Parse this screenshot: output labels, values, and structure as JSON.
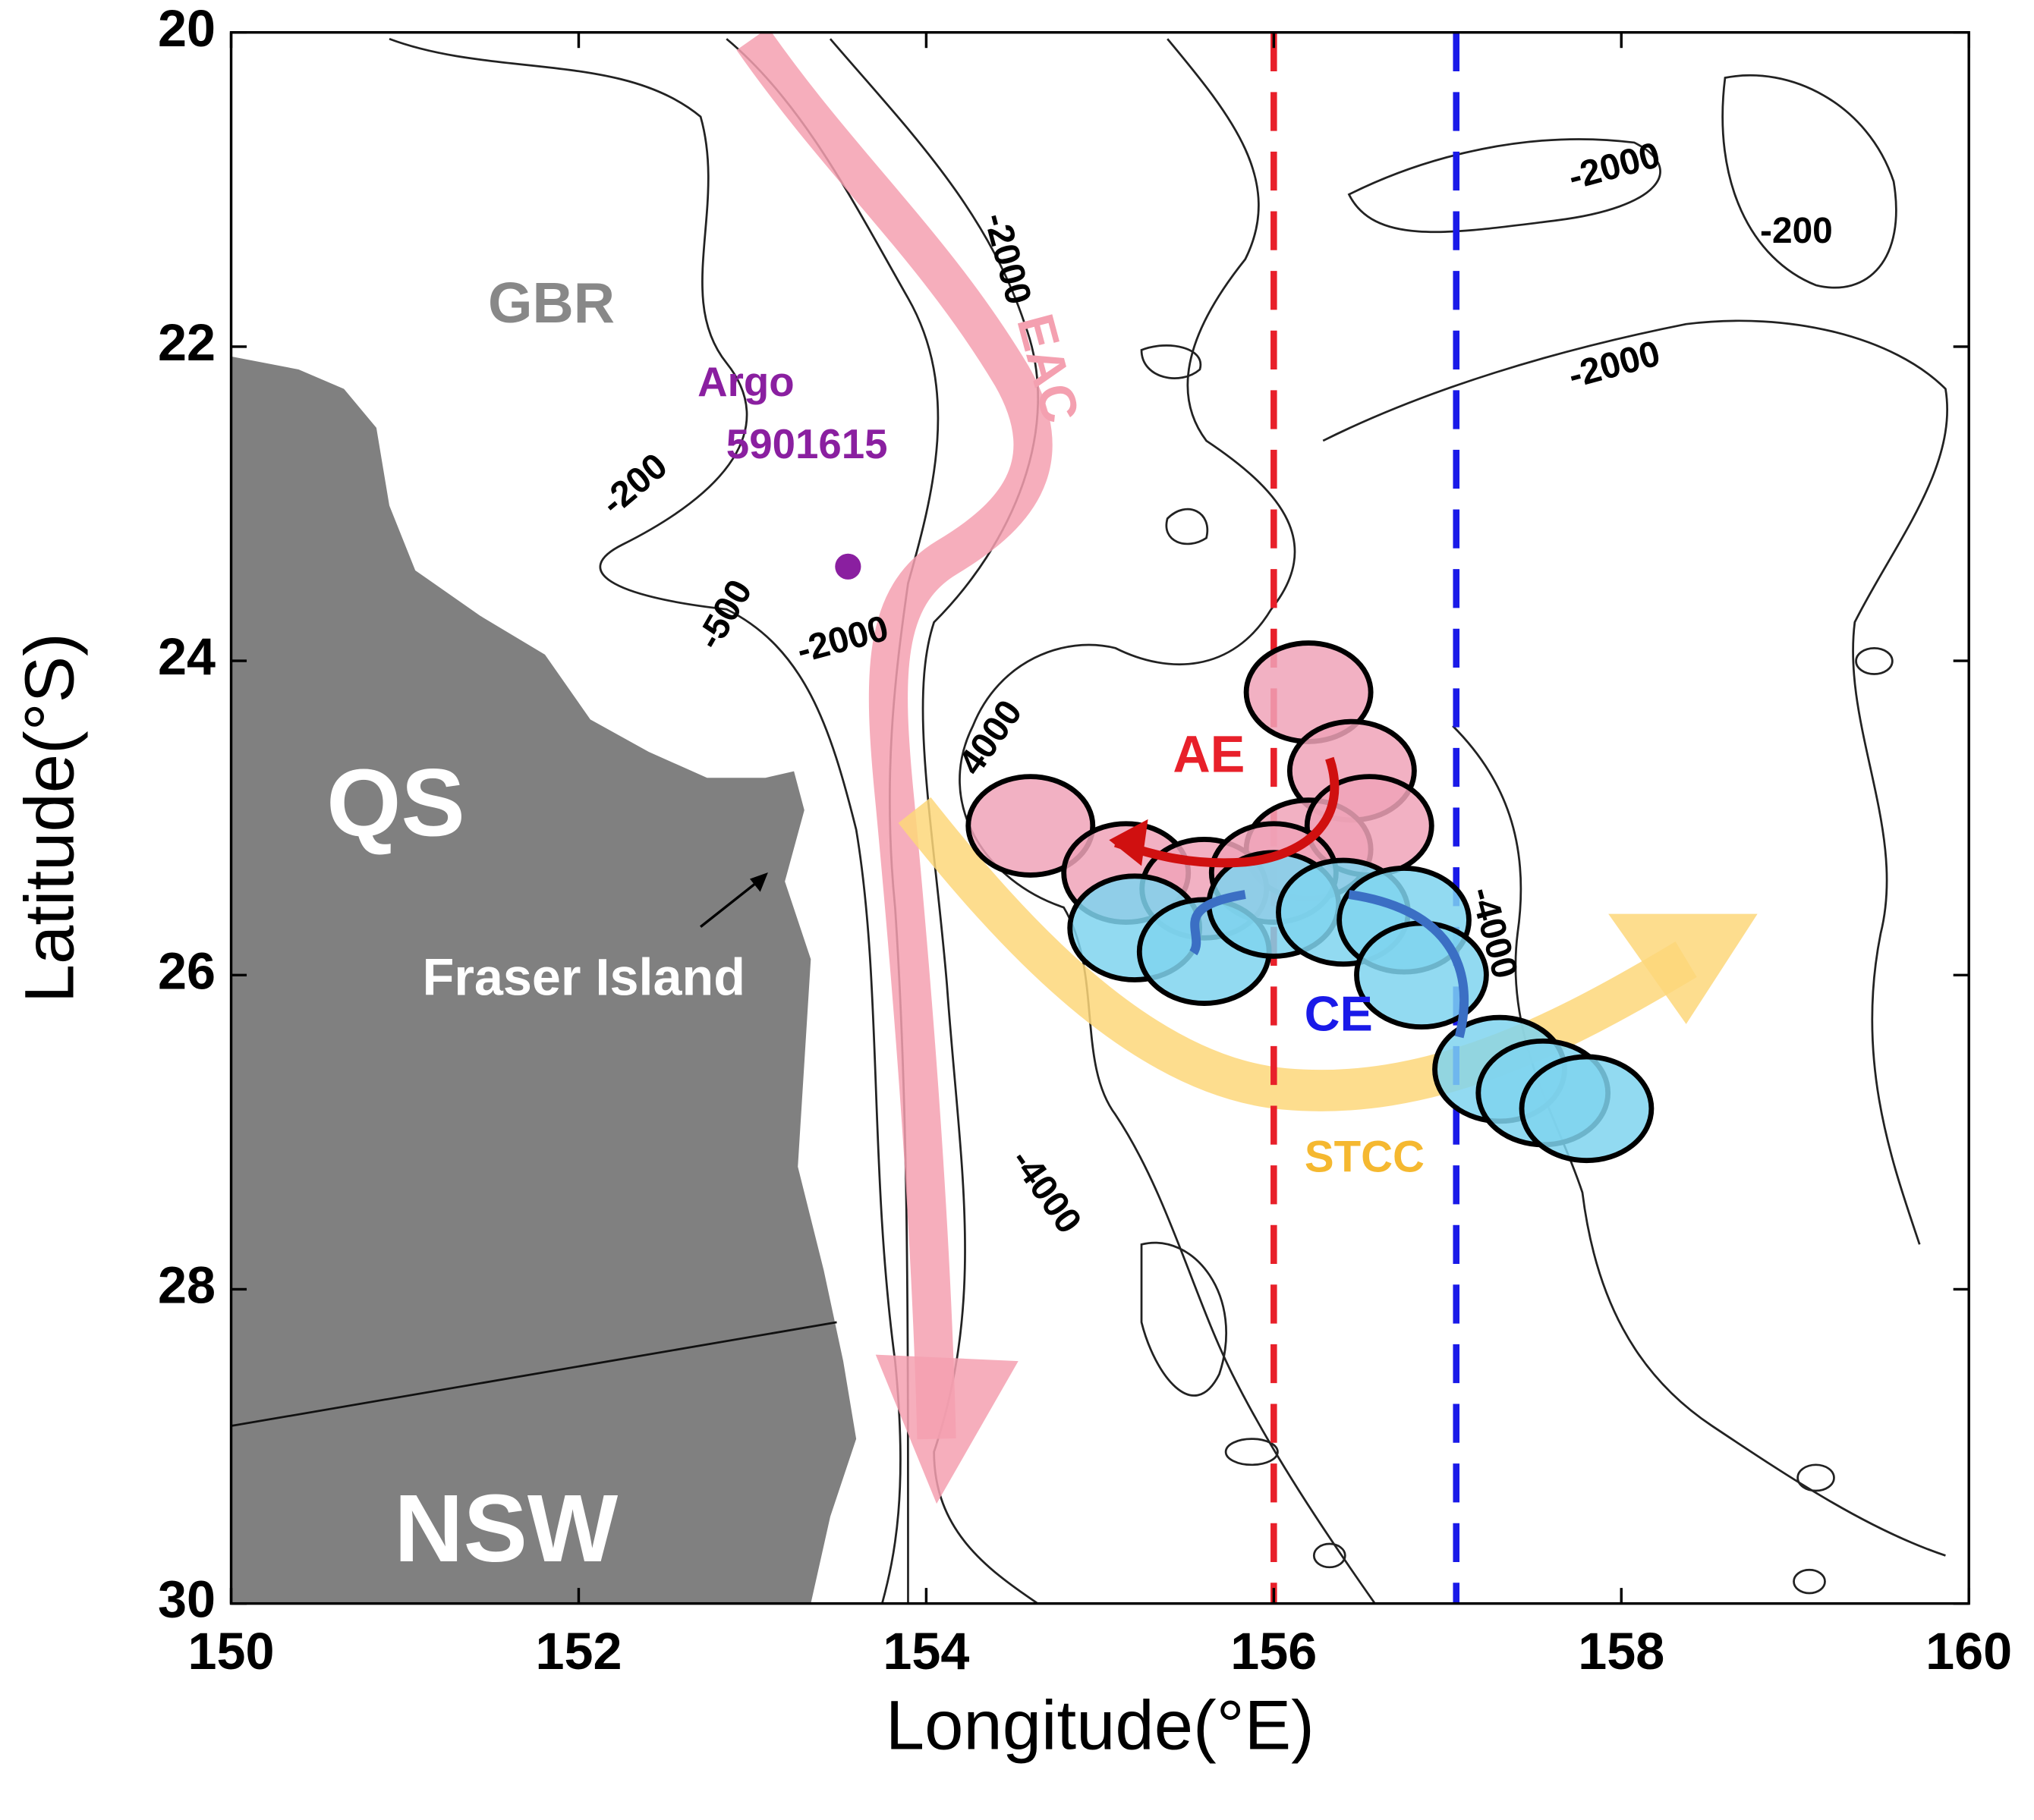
{
  "map": {
    "xlabel": "Longitude(°E)",
    "ylabel": "Latitude(°S)",
    "xlim": [
      150,
      160
    ],
    "ylim": [
      20,
      30
    ],
    "xticks": [
      150,
      152,
      154,
      156,
      158,
      160
    ],
    "yticks": [
      20,
      22,
      24,
      26,
      28,
      30
    ],
    "sections": [
      {
        "lon": 156,
        "color": "#e8202a"
      },
      {
        "lon": 157.05,
        "color": "#1a1ae8"
      }
    ],
    "argo": {
      "lon": 153.55,
      "lat": 23.4,
      "color": "#8a1fa0"
    },
    "anticyclonic_eddies": {
      "color": "#f0a3b8",
      "centers": [
        {
          "lon": 156.2,
          "lat": 24.2
        },
        {
          "lon": 156.45,
          "lat": 24.7
        },
        {
          "lon": 154.6,
          "lat": 25.05
        },
        {
          "lon": 155.15,
          "lat": 25.35
        },
        {
          "lon": 156.2,
          "lat": 25.2
        },
        {
          "lon": 156.55,
          "lat": 25.05
        },
        {
          "lon": 155.6,
          "lat": 25.45
        },
        {
          "lon": 156.0,
          "lat": 25.35
        }
      ]
    },
    "cyclonic_eddies": {
      "color": "#7fd3ee",
      "centers": [
        {
          "lon": 155.2,
          "lat": 25.7
        },
        {
          "lon": 155.6,
          "lat": 25.85
        },
        {
          "lon": 156.0,
          "lat": 25.55
        },
        {
          "lon": 156.4,
          "lat": 25.6
        },
        {
          "lon": 156.75,
          "lat": 25.65
        },
        {
          "lon": 156.85,
          "lat": 26.0
        },
        {
          "lon": 157.3,
          "lat": 26.6
        },
        {
          "lon": 157.55,
          "lat": 26.75
        },
        {
          "lon": 157.8,
          "lat": 26.85
        }
      ]
    },
    "labels": [
      {
        "text": "GBR",
        "color": "#888888"
      },
      {
        "text": "Argo",
        "color": "#8a1fa0"
      },
      {
        "text": "5901615",
        "color": "#8a1fa0"
      },
      {
        "text": "EAC",
        "color": "#f4a0b0"
      },
      {
        "text": "QS",
        "color": "#ffffff"
      },
      {
        "text": "Fraser Island",
        "color": "#ffffff"
      },
      {
        "text": "NSW",
        "color": "#ffffff"
      },
      {
        "text": "AE",
        "color": "#e8202a"
      },
      {
        "text": "CE",
        "color": "#1a1ae8"
      },
      {
        "text": "STCC",
        "color": "#f5b830"
      }
    ],
    "contour_labels": [
      "-2000",
      "-200",
      "-500",
      "-2000",
      "4000",
      "-2000",
      "-200",
      "-2000",
      "-4000",
      "-4000"
    ]
  }
}
